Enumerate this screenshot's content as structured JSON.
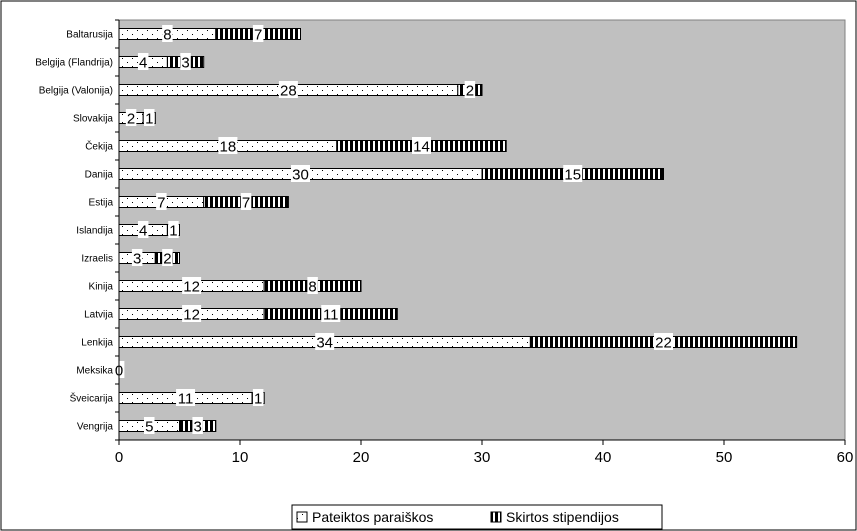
{
  "chart_data": {
    "type": "bar",
    "orientation": "horizontal",
    "stacked": true,
    "categories": [
      "Baltarusija",
      "Belgija (Flandrija)",
      "Belgija (Valonija)",
      "Slovakija",
      "Čekija",
      "Danija",
      "Estija",
      "Islandija",
      "Izraelis",
      "Kinija",
      "Latvija",
      "Lenkija",
      "Meksika",
      "Šveicarija",
      "Vengrija"
    ],
    "series": [
      {
        "name": "Pateiktos paraiškos",
        "values": [
          8,
          4,
          28,
          2,
          18,
          30,
          7,
          4,
          3,
          12,
          12,
          34,
          0,
          11,
          5
        ],
        "color": "#ffffff",
        "pattern": "dots"
      },
      {
        "name": "Skirtos stipendijos",
        "values": [
          7,
          3,
          2,
          1,
          14,
          15,
          7,
          1,
          2,
          8,
          11,
          22,
          0,
          1,
          3
        ],
        "color": "#000000",
        "pattern": "vertical-stripes"
      }
    ],
    "xlim": [
      0,
      60
    ],
    "xticks": [
      0,
      10,
      20,
      30,
      40,
      50,
      60
    ],
    "plot_background": "#c0c0c0",
    "legend_position": "bottom",
    "grid": false
  }
}
